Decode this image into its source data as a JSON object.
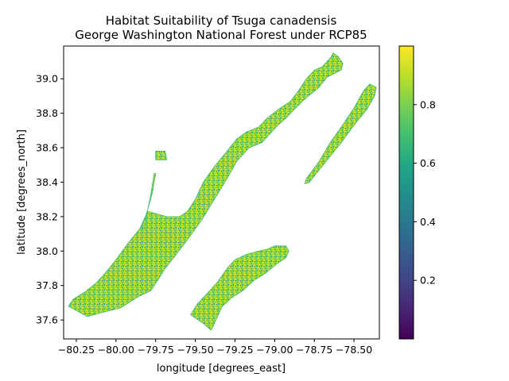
{
  "chart_data": {
    "type": "heatmap",
    "title_line1": "Habitat Suitability of Tsuga canadensis",
    "title_line2": "George Washington National Forest under RCP85",
    "xlabel": "longitude [degrees_east]",
    "ylabel": "latitude [degrees_north]",
    "x_ticks": [
      -80.25,
      -80.0,
      -79.75,
      -79.5,
      -79.25,
      -79.0,
      -78.75,
      -78.5
    ],
    "x_tick_labels": [
      "−80.25",
      "−80.00",
      "−79.75",
      "−79.50",
      "−79.25",
      "−79.00",
      "−78.75",
      "−78.50"
    ],
    "y_ticks": [
      37.6,
      37.8,
      38.0,
      38.2,
      38.4,
      38.6,
      38.8,
      39.0
    ],
    "y_tick_labels": [
      "37.6",
      "37.8",
      "38.0",
      "38.2",
      "38.4",
      "38.6",
      "38.8",
      "39.0"
    ],
    "xlim": [
      -80.33,
      -78.34
    ],
    "ylim": [
      37.49,
      39.19
    ],
    "colormap": "viridis",
    "colorbar": {
      "range": [
        0.0,
        1.0
      ],
      "ticks": [
        0.2,
        0.4,
        0.6,
        0.8
      ],
      "tick_labels": [
        "0.2",
        "0.4",
        "0.6",
        "0.8"
      ]
    },
    "regions": [
      {
        "name": "northern-section",
        "dominant_value": 0.75,
        "outline": [
          [
            -80.3,
            37.68
          ],
          [
            -80.26,
            37.66
          ],
          [
            -80.18,
            37.62
          ],
          [
            -80.1,
            37.64
          ],
          [
            -79.97,
            37.67
          ],
          [
            -79.87,
            37.73
          ],
          [
            -79.78,
            37.77
          ],
          [
            -79.73,
            37.84
          ],
          [
            -79.69,
            37.9
          ],
          [
            -79.62,
            37.98
          ],
          [
            -79.53,
            38.09
          ],
          [
            -79.46,
            38.18
          ],
          [
            -79.38,
            38.3
          ],
          [
            -79.3,
            38.42
          ],
          [
            -79.24,
            38.52
          ],
          [
            -79.16,
            38.6
          ],
          [
            -79.08,
            38.63
          ],
          [
            -79.05,
            38.66
          ],
          [
            -78.98,
            38.73
          ],
          [
            -78.93,
            38.77
          ],
          [
            -78.88,
            38.82
          ],
          [
            -78.8,
            38.89
          ],
          [
            -78.72,
            38.95
          ],
          [
            -78.67,
            39.01
          ],
          [
            -78.58,
            39.05
          ],
          [
            -78.57,
            39.09
          ],
          [
            -78.6,
            39.13
          ],
          [
            -78.63,
            39.15
          ],
          [
            -78.65,
            39.12
          ],
          [
            -78.7,
            39.07
          ],
          [
            -78.75,
            39.05
          ],
          [
            -78.8,
            39.0
          ],
          [
            -78.85,
            38.93
          ],
          [
            -78.9,
            38.87
          ],
          [
            -78.98,
            38.82
          ],
          [
            -79.05,
            38.77
          ],
          [
            -79.1,
            38.72
          ],
          [
            -79.18,
            38.69
          ],
          [
            -79.24,
            38.65
          ],
          [
            -79.3,
            38.58
          ],
          [
            -79.38,
            38.49
          ],
          [
            -79.45,
            38.4
          ],
          [
            -79.5,
            38.3
          ],
          [
            -79.55,
            38.23
          ],
          [
            -79.6,
            38.2
          ],
          [
            -79.68,
            38.2
          ],
          [
            -79.8,
            38.23
          ],
          [
            -79.85,
            38.13
          ],
          [
            -79.92,
            38.05
          ],
          [
            -80.0,
            37.95
          ],
          [
            -80.07,
            37.87
          ],
          [
            -80.13,
            37.81
          ],
          [
            -80.2,
            37.76
          ],
          [
            -80.27,
            37.72
          ]
        ]
      },
      {
        "name": "western-tongue",
        "dominant_value": 0.7,
        "outline": [
          [
            -79.84,
            38.13
          ],
          [
            -79.8,
            38.24
          ],
          [
            -79.78,
            38.33
          ],
          [
            -79.76,
            38.45
          ],
          [
            -79.75,
            38.45
          ],
          [
            -79.77,
            38.34
          ],
          [
            -79.8,
            38.24
          ],
          [
            -79.82,
            38.13
          ]
        ]
      },
      {
        "name": "western-patch",
        "dominant_value": 0.72,
        "outline": [
          [
            -79.75,
            38.58
          ],
          [
            -79.69,
            38.58
          ],
          [
            -79.68,
            38.53
          ],
          [
            -79.75,
            38.53
          ]
        ]
      },
      {
        "name": "northeastern-ridge",
        "dominant_value": 0.8,
        "outline": [
          [
            -78.8,
            38.42
          ],
          [
            -78.72,
            38.52
          ],
          [
            -78.65,
            38.63
          ],
          [
            -78.58,
            38.72
          ],
          [
            -78.5,
            38.83
          ],
          [
            -78.44,
            38.93
          ],
          [
            -78.4,
            38.97
          ],
          [
            -78.36,
            38.95
          ],
          [
            -78.37,
            38.9
          ],
          [
            -78.42,
            38.82
          ],
          [
            -78.5,
            38.73
          ],
          [
            -78.58,
            38.63
          ],
          [
            -78.65,
            38.55
          ],
          [
            -78.72,
            38.47
          ],
          [
            -78.78,
            38.4
          ],
          [
            -78.81,
            38.39
          ]
        ]
      },
      {
        "name": "southern-section",
        "dominant_value": 0.75,
        "outline": [
          [
            -79.53,
            37.63
          ],
          [
            -79.45,
            37.58
          ],
          [
            -79.4,
            37.54
          ],
          [
            -79.37,
            37.6
          ],
          [
            -79.33,
            37.68
          ],
          [
            -79.27,
            37.73
          ],
          [
            -79.2,
            37.77
          ],
          [
            -79.13,
            37.83
          ],
          [
            -79.06,
            37.87
          ],
          [
            -78.98,
            37.93
          ],
          [
            -78.93,
            37.96
          ],
          [
            -78.91,
            38.0
          ],
          [
            -78.93,
            38.03
          ],
          [
            -79.0,
            38.03
          ],
          [
            -79.05,
            38.01
          ],
          [
            -79.1,
            38.0
          ],
          [
            -79.18,
            37.98
          ],
          [
            -79.25,
            37.95
          ],
          [
            -79.3,
            37.9
          ],
          [
            -79.36,
            37.82
          ],
          [
            -79.43,
            37.75
          ],
          [
            -79.49,
            37.69
          ]
        ]
      }
    ]
  }
}
